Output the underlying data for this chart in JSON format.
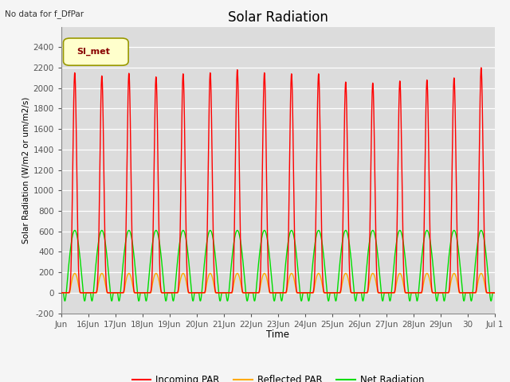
{
  "title": "Solar Radiation",
  "ylabel": "Solar Radiation (W/m2 or um/m2/s)",
  "xlabel": "Time",
  "top_left_text": "No data for f_DfPar",
  "legend_label": "SI_met",
  "ylim": [
    -200,
    2600
  ],
  "yticks": [
    -200,
    0,
    200,
    400,
    600,
    800,
    1000,
    1200,
    1400,
    1600,
    1800,
    2000,
    2200,
    2400
  ],
  "xtick_labels": [
    "Jun",
    "16Jun",
    "17Jun",
    "18Jun",
    "19Jun",
    "20Jun",
    "21Jun",
    "22Jun",
    "23Jun",
    "24Jun",
    "25Jun",
    "26Jun",
    "27Jun",
    "28Jun",
    "29Jun",
    "30",
    "Jul 1"
  ],
  "bg_color": "#dcdcdc",
  "fig_color": "#f5f5f5",
  "incoming_color": "#ff0000",
  "reflected_color": "#ffaa00",
  "net_color": "#00dd00",
  "line_width": 1.0,
  "n_days": 16,
  "incoming_peaks": [
    2150,
    2120,
    2145,
    2110,
    2140,
    2150,
    2180,
    2150,
    2140,
    2140,
    2060,
    2050,
    2070,
    2080,
    2100,
    2200
  ],
  "reflected_peak": 190,
  "net_peak": 610,
  "net_trough": -80
}
